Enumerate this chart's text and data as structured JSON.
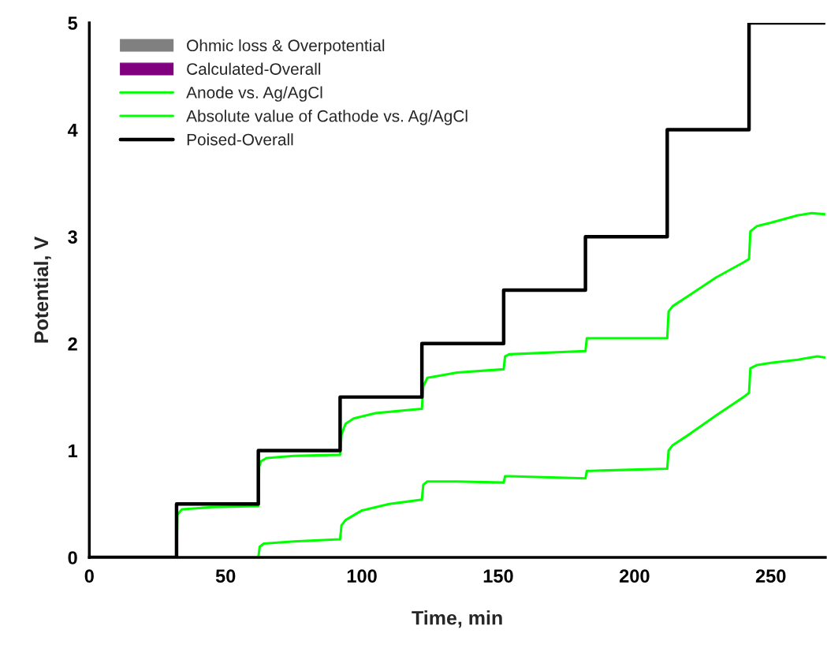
{
  "chart_data": {
    "type": "line",
    "xlabel": "Time, min",
    "ylabel": "Potential, V",
    "xlim": [
      0,
      270
    ],
    "xticks": [
      0,
      50,
      100,
      150,
      200,
      250
    ],
    "ylim": [
      0,
      5
    ],
    "yticks": [
      0,
      1,
      2,
      3,
      4,
      5
    ],
    "grid": false,
    "legend": "top left",
    "marker": "none",
    "line_style": "solid",
    "series": [
      {
        "name": "Ohmic loss & Overpotential",
        "type": "area",
        "color": "#808080"
      },
      {
        "name": "Calculated-Overall",
        "type": "area",
        "color": "#800080"
      },
      {
        "name": "Anode vs. Ag/AgCl",
        "color": "#00ff00",
        "x": [
          32,
          32.3,
          34,
          45,
          62,
          62.3,
          63,
          65,
          75,
          92,
          92.5,
          94,
          97,
          105,
          122,
          122.5,
          124,
          135,
          152,
          152.5,
          154,
          182,
          182.5,
          184,
          212,
          212.5,
          214,
          220,
          230,
          240,
          242,
          242.5,
          245,
          250,
          260,
          265,
          270
        ],
        "values": [
          0,
          0.4,
          0.45,
          0.47,
          0.48,
          0.85,
          0.9,
          0.93,
          0.95,
          0.96,
          1.15,
          1.25,
          1.3,
          1.35,
          1.39,
          1.6,
          1.68,
          1.73,
          1.76,
          1.88,
          1.9,
          1.93,
          2.05,
          2.05,
          2.05,
          2.3,
          2.35,
          2.45,
          2.62,
          2.76,
          2.79,
          3.05,
          3.1,
          3.13,
          3.2,
          3.22,
          3.21
        ]
      },
      {
        "name": "Absolute value of Cathode vs. Ag/AgCl",
        "color": "#00ff00",
        "x": [
          62,
          62.5,
          64,
          75,
          92,
          92.5,
          94,
          100,
          110,
          122,
          122.5,
          124,
          135,
          152,
          152.5,
          154,
          182,
          182.5,
          184,
          212,
          212.5,
          214,
          220,
          230,
          240,
          242,
          242.5,
          245,
          250,
          260,
          267,
          270
        ],
        "values": [
          0,
          0.1,
          0.13,
          0.15,
          0.17,
          0.3,
          0.35,
          0.44,
          0.5,
          0.54,
          0.68,
          0.71,
          0.71,
          0.7,
          0.76,
          0.76,
          0.74,
          0.81,
          0.81,
          0.83,
          1.0,
          1.05,
          1.15,
          1.33,
          1.5,
          1.54,
          1.77,
          1.8,
          1.82,
          1.85,
          1.88,
          1.87
        ]
      },
      {
        "name": "Poised-Overall",
        "type": "step",
        "color": "#000000",
        "x": [
          0,
          32,
          62,
          92,
          122,
          152,
          182,
          212,
          242,
          270
        ],
        "values": [
          0,
          0.5,
          1,
          1.5,
          2,
          2.5,
          3,
          4,
          5,
          5
        ]
      }
    ]
  }
}
